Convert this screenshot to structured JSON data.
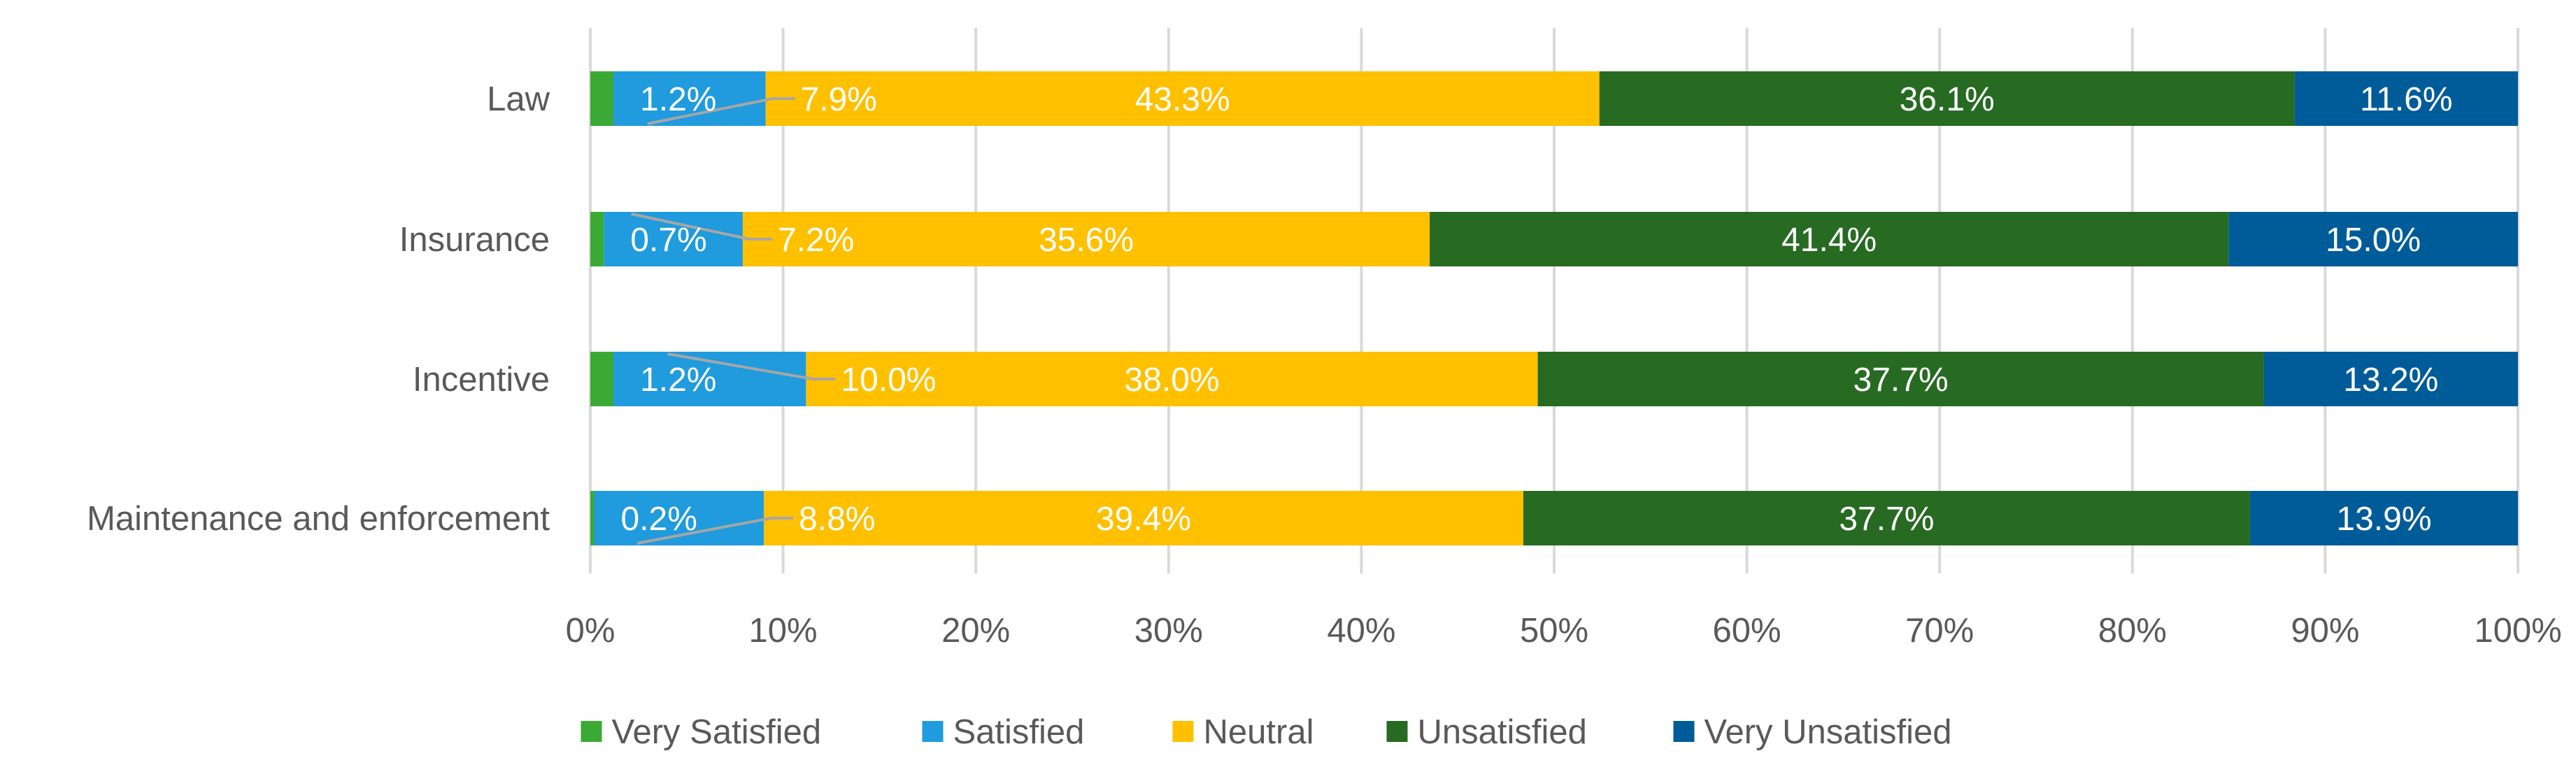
{
  "chart_data": {
    "type": "bar",
    "orientation": "horizontal",
    "stacked": true,
    "percent_stacked": true,
    "title": "",
    "xlabel": "",
    "ylabel": "",
    "xlim": [
      0,
      100
    ],
    "grid": true,
    "legend_position": "bottom",
    "categories": [
      "Law",
      "Insurance",
      "Incentive",
      "Maintenance and enforcement"
    ],
    "x_ticks": [
      "0%",
      "10%",
      "20%",
      "30%",
      "40%",
      "50%",
      "60%",
      "70%",
      "80%",
      "90%",
      "100%"
    ],
    "series": [
      {
        "name": "Very Satisfied",
        "color": "#3AAA35",
        "values": [
          1.2,
          0.7,
          1.2,
          0.2
        ]
      },
      {
        "name": "Satisfied",
        "color": "#1F9BDE",
        "values": [
          7.9,
          7.2,
          10.0,
          8.8
        ]
      },
      {
        "name": "Neutral",
        "color": "#FFC000",
        "values": [
          43.3,
          35.6,
          38.0,
          39.4
        ]
      },
      {
        "name": "Unsatisfied",
        "color": "#276A22",
        "values": [
          36.1,
          41.4,
          37.7,
          37.7
        ]
      },
      {
        "name": "Very Unsatisfied",
        "color": "#005C99",
        "values": [
          11.6,
          15.0,
          13.2,
          13.9
        ]
      }
    ],
    "data_labels": [
      [
        "1.2%",
        "7.9%",
        "43.3%",
        "36.1%",
        "11.6%"
      ],
      [
        "0.7%",
        "7.2%",
        "35.6%",
        "41.4%",
        "15.0%"
      ],
      [
        "1.2%",
        "10.0%",
        "38.0%",
        "37.7%",
        "13.2%"
      ],
      [
        "0.2%",
        "8.8%",
        "39.4%",
        "37.7%",
        "13.9%"
      ]
    ],
    "colors": {
      "gridline": "#D9D9D9",
      "axis_text": "#595959",
      "data_label": "#FFFFFF",
      "leader_line": "#A6A6A6"
    }
  }
}
